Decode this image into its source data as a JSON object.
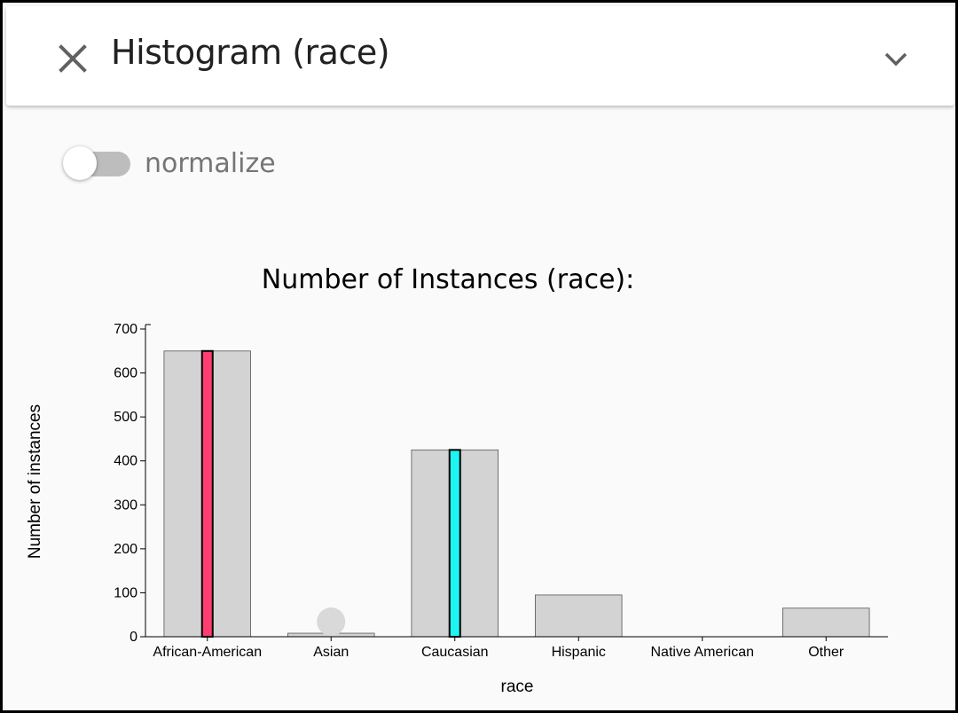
{
  "header": {
    "title": "Histogram (race)",
    "close_icon": "close-icon",
    "expand_icon": "chevron-down-icon"
  },
  "toggle": {
    "label": "normalize",
    "checked": false
  },
  "colors": {
    "bar_fill": "#d3d3d3",
    "highlight_1": "#ff3d71",
    "highlight_2": "#1ef5f2",
    "marker": "#d9d9d9"
  },
  "chart_data": {
    "type": "bar",
    "title": "Number of Instances (race):",
    "xlabel": "race",
    "ylabel": "Number of instances",
    "categories": [
      "African-American",
      "Asian",
      "Caucasian",
      "Hispanic",
      "Native American",
      "Other"
    ],
    "values": [
      650,
      8,
      425,
      95,
      0,
      65
    ],
    "highlights": [
      {
        "category": "African-American",
        "value": 650,
        "color": "#ff3d71"
      },
      {
        "category": "Caucasian",
        "value": 425,
        "color": "#1ef5f2"
      }
    ],
    "markers": [
      {
        "category": "Asian",
        "value": 35
      }
    ],
    "ylim": [
      0,
      700
    ],
    "yticks": [
      0,
      100,
      200,
      300,
      400,
      500,
      600,
      700
    ],
    "grid": false,
    "legend": "none"
  }
}
